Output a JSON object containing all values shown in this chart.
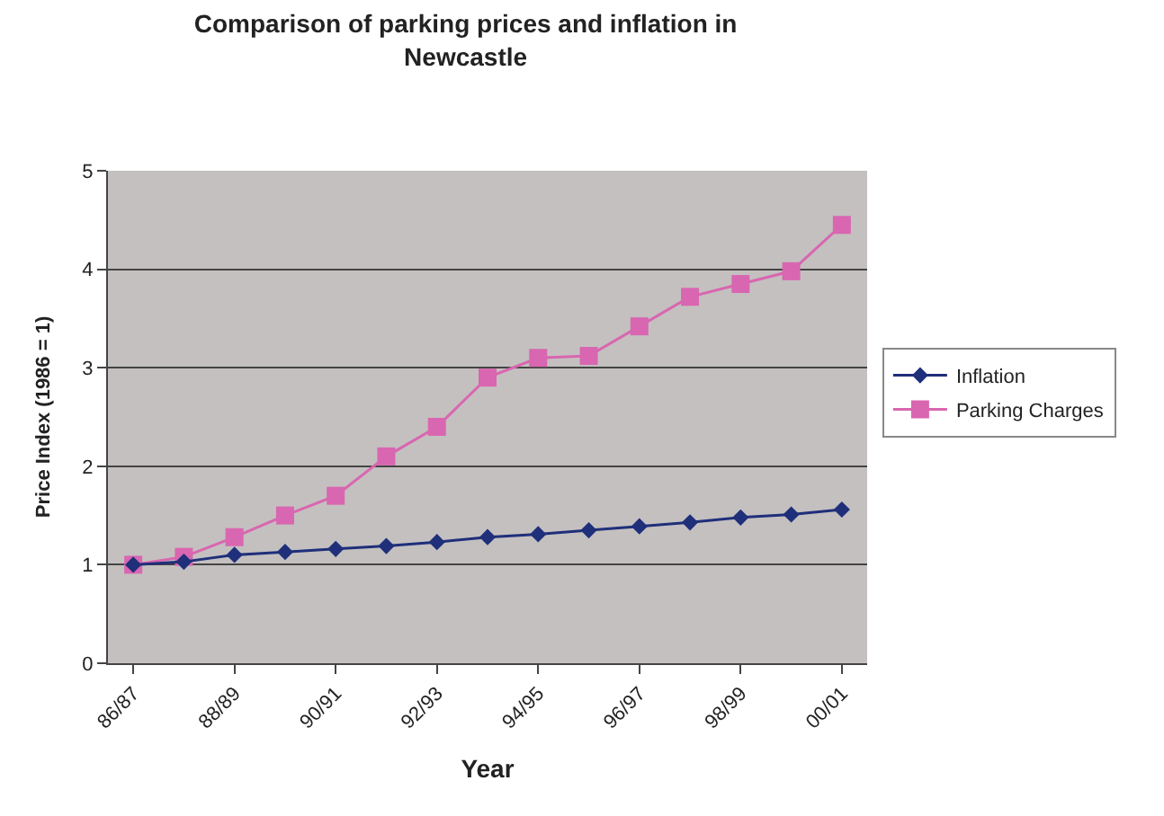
{
  "chart_data": {
    "type": "line",
    "title": "Comparison of parking prices and inflation in\nNewcastle",
    "xlabel": "Year",
    "ylabel": "Price Index (1986 = 1)",
    "categories": [
      "86/87",
      null,
      "88/89",
      null,
      "90/91",
      null,
      "92/93",
      null,
      "94/95",
      null,
      "96/97",
      null,
      "98/99",
      null,
      "00/01"
    ],
    "series": [
      {
        "name": "Inflation",
        "color": "#1f2f7a",
        "marker": "diamond",
        "values": [
          1.0,
          1.03,
          1.1,
          1.13,
          1.16,
          1.19,
          1.23,
          1.28,
          1.31,
          1.35,
          1.39,
          1.43,
          1.48,
          1.51,
          1.56
        ]
      },
      {
        "name": "Parking Charges",
        "color": "#d966b0",
        "marker": "square",
        "values": [
          1.0,
          1.08,
          1.28,
          1.5,
          1.7,
          2.1,
          2.4,
          2.9,
          3.1,
          3.12,
          3.42,
          3.72,
          3.85,
          3.98,
          4.45
        ]
      }
    ],
    "ylim": [
      0,
      5
    ],
    "yticks": [
      0,
      1,
      2,
      3,
      4,
      5
    ],
    "grid": "y",
    "legend": "right"
  }
}
